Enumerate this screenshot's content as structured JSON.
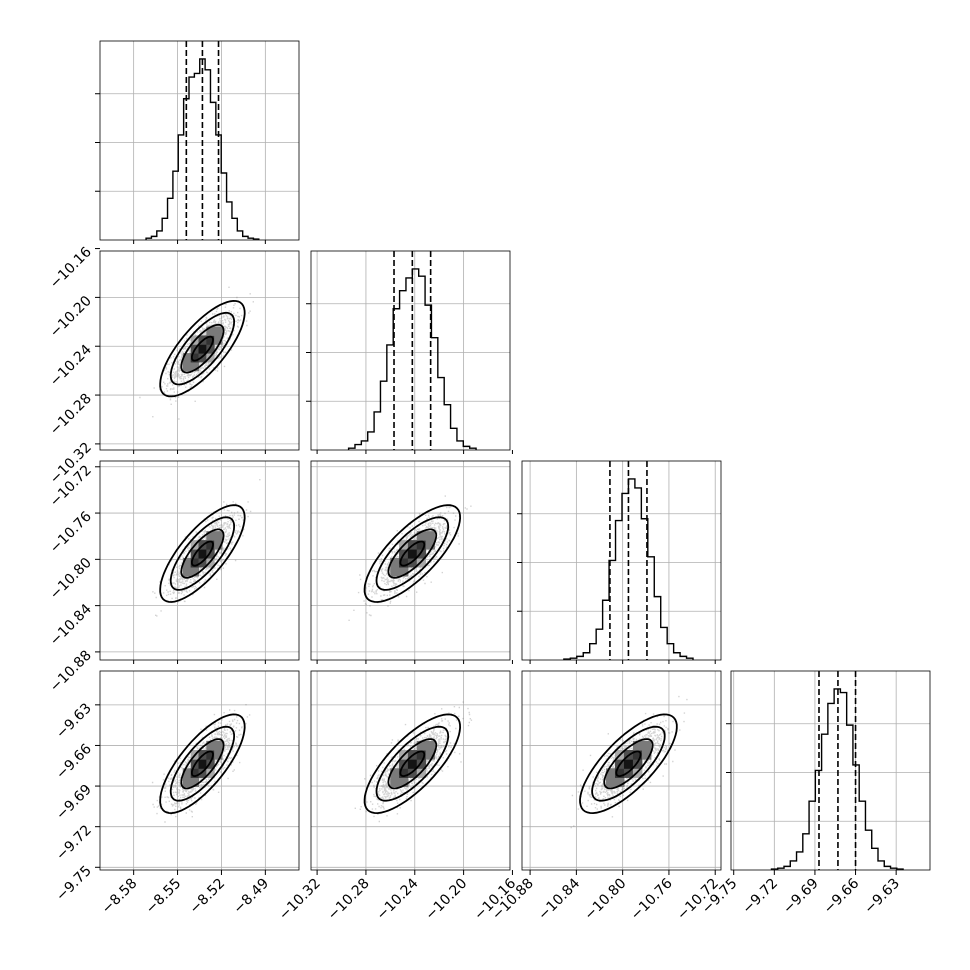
{
  "chart_data": {
    "type": "corner",
    "grid": true,
    "colors": {
      "axes": "#000000",
      "grid": "#b0b0b0",
      "contour": "#000000",
      "scatter": "#808080",
      "quantile_line": "#000000"
    },
    "quantiles": [
      0.16,
      0.5,
      0.84
    ],
    "parameters": [
      {
        "index": 0,
        "range": [
          -8.603,
          -8.467
        ],
        "ticks": [
          -8.58,
          -8.55,
          -8.52,
          -8.49
        ],
        "tick_labels": [
          "−8.58",
          "−8.55",
          "−8.52",
          "−8.49"
        ],
        "mean": -8.533,
        "sd": 0.0107,
        "quantile_values": [
          -8.544,
          -8.533,
          -8.522
        ],
        "hist_counts": [
          0.01,
          0.02,
          0.05,
          0.12,
          0.23,
          0.38,
          0.58,
          0.78,
          0.9,
          0.92,
          1.0,
          0.94,
          0.76,
          0.58,
          0.37,
          0.21,
          0.12,
          0.05,
          0.02,
          0.01,
          0.005
        ]
      },
      {
        "index": 1,
        "range": [
          -10.325,
          -10.162
        ],
        "ticks": [
          -10.32,
          -10.28,
          -10.24,
          -10.2,
          -10.16
        ],
        "tick_labels": [
          "−10.32",
          "−10.28",
          "−10.24",
          "−10.20",
          "−10.16"
        ],
        "mean": -10.242,
        "sd": 0.0145,
        "quantile_values": [
          -10.257,
          -10.242,
          -10.227
        ],
        "hist_counts": [
          0.01,
          0.03,
          0.05,
          0.1,
          0.21,
          0.38,
          0.58,
          0.78,
          0.88,
          0.95,
          1.0,
          0.96,
          0.8,
          0.62,
          0.4,
          0.25,
          0.12,
          0.05,
          0.02,
          0.01
        ]
      },
      {
        "index": 2,
        "range": [
          -10.887,
          -10.715
        ],
        "ticks": [
          -10.88,
          -10.84,
          -10.8,
          -10.76,
          -10.72
        ],
        "tick_labels": [
          "−10.88",
          "−10.84",
          "−10.80",
          "−10.76",
          "−10.72"
        ],
        "mean": -10.795,
        "sd": 0.0155,
        "quantile_values": [
          -10.811,
          -10.795,
          -10.779
        ],
        "hist_counts": [
          0.005,
          0.01,
          0.02,
          0.04,
          0.09,
          0.17,
          0.33,
          0.55,
          0.77,
          0.92,
          1.0,
          0.95,
          0.78,
          0.57,
          0.35,
          0.18,
          0.09,
          0.04,
          0.02,
          0.01
        ]
      },
      {
        "index": 3,
        "range": [
          -9.752,
          -9.605
        ],
        "ticks": [
          -9.75,
          -9.72,
          -9.69,
          -9.66,
          -9.63
        ],
        "tick_labels": [
          "−9.75",
          "−9.72",
          "−9.69",
          "−9.66",
          "−9.63"
        ],
        "mean": -9.6735,
        "sd": 0.0135,
        "quantile_values": [
          -9.687,
          -9.673,
          -9.66
        ],
        "hist_counts": [
          0.005,
          0.01,
          0.02,
          0.05,
          0.1,
          0.2,
          0.38,
          0.55,
          0.75,
          0.92,
          1.0,
          0.98,
          0.8,
          0.58,
          0.38,
          0.22,
          0.12,
          0.05,
          0.02,
          0.01,
          0.005
        ]
      }
    ],
    "correlation": 0.75,
    "contour_levels_sigma": [
      0.5,
      1.0,
      1.5,
      2.0
    ]
  }
}
